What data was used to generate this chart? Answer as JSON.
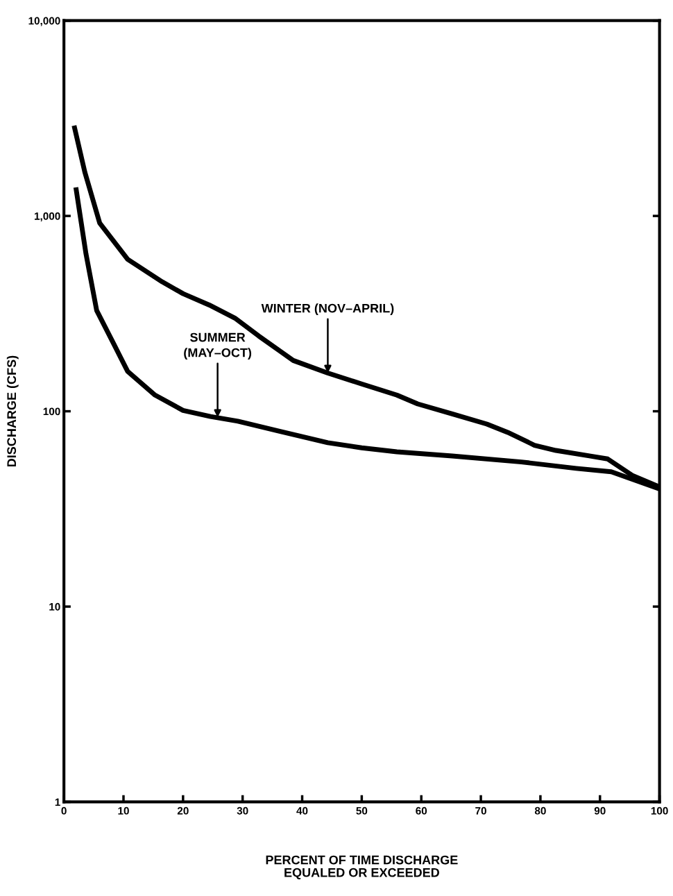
{
  "chart_data": {
    "type": "line",
    "xlabel": "PERCENT OF TIME DISCHARGE\nEQUALED OR EXCEEDED",
    "ylabel": "DISCHARGE (CFS)",
    "log": "y",
    "xlim": [
      0,
      100
    ],
    "xticks": [
      0,
      10,
      20,
      30,
      40,
      50,
      60,
      70,
      80,
      90,
      100
    ],
    "ylim": [
      1,
      10000
    ],
    "yticks": [
      1,
      10,
      100,
      {
        "value": 1000,
        "label": "1,000"
      },
      {
        "value": 10000,
        "label": "10,000"
      }
    ],
    "grid": false,
    "legend": false,
    "marker": "none",
    "line_style": "solid",
    "series": [
      {
        "color": "#000000",
        "x": [
          1.7,
          3.5,
          6,
          10.7,
          16.5,
          20,
          24.4,
          28.7,
          32.7,
          38.5,
          44.3,
          50,
          55.9,
          59.4,
          65.2,
          71,
          74.5,
          79,
          82.6,
          88.4,
          91.3,
          95.4,
          100
        ],
        "values": [
          2900,
          1680,
          920,
          600,
          460,
          400,
          350,
          300,
          243,
          182,
          157,
          138,
          121,
          109,
          97,
          86,
          78,
          67,
          63,
          59,
          57,
          47,
          41
        ]
      },
      {
        "color": "#000000",
        "x": [
          2,
          3.7,
          5.5,
          8.4,
          10.7,
          15.3,
          20,
          24.6,
          29.2,
          36.2,
          44.3,
          50,
          55.9,
          65.2,
          76.8,
          86,
          91.9,
          100
        ],
        "values": [
          1400,
          640,
          328,
          220,
          160,
          121,
          101,
          94,
          89,
          79,
          69,
          65,
          62,
          59,
          55,
          51,
          49,
          40
        ]
      }
    ],
    "annotations": [
      {
        "text": "WINTER (NOV–APRIL)",
        "x": 44.3,
        "y": 157
      },
      {
        "text": "SUMMER\n(MAY–OCT)",
        "x": 25.8,
        "y": 93
      }
    ]
  }
}
